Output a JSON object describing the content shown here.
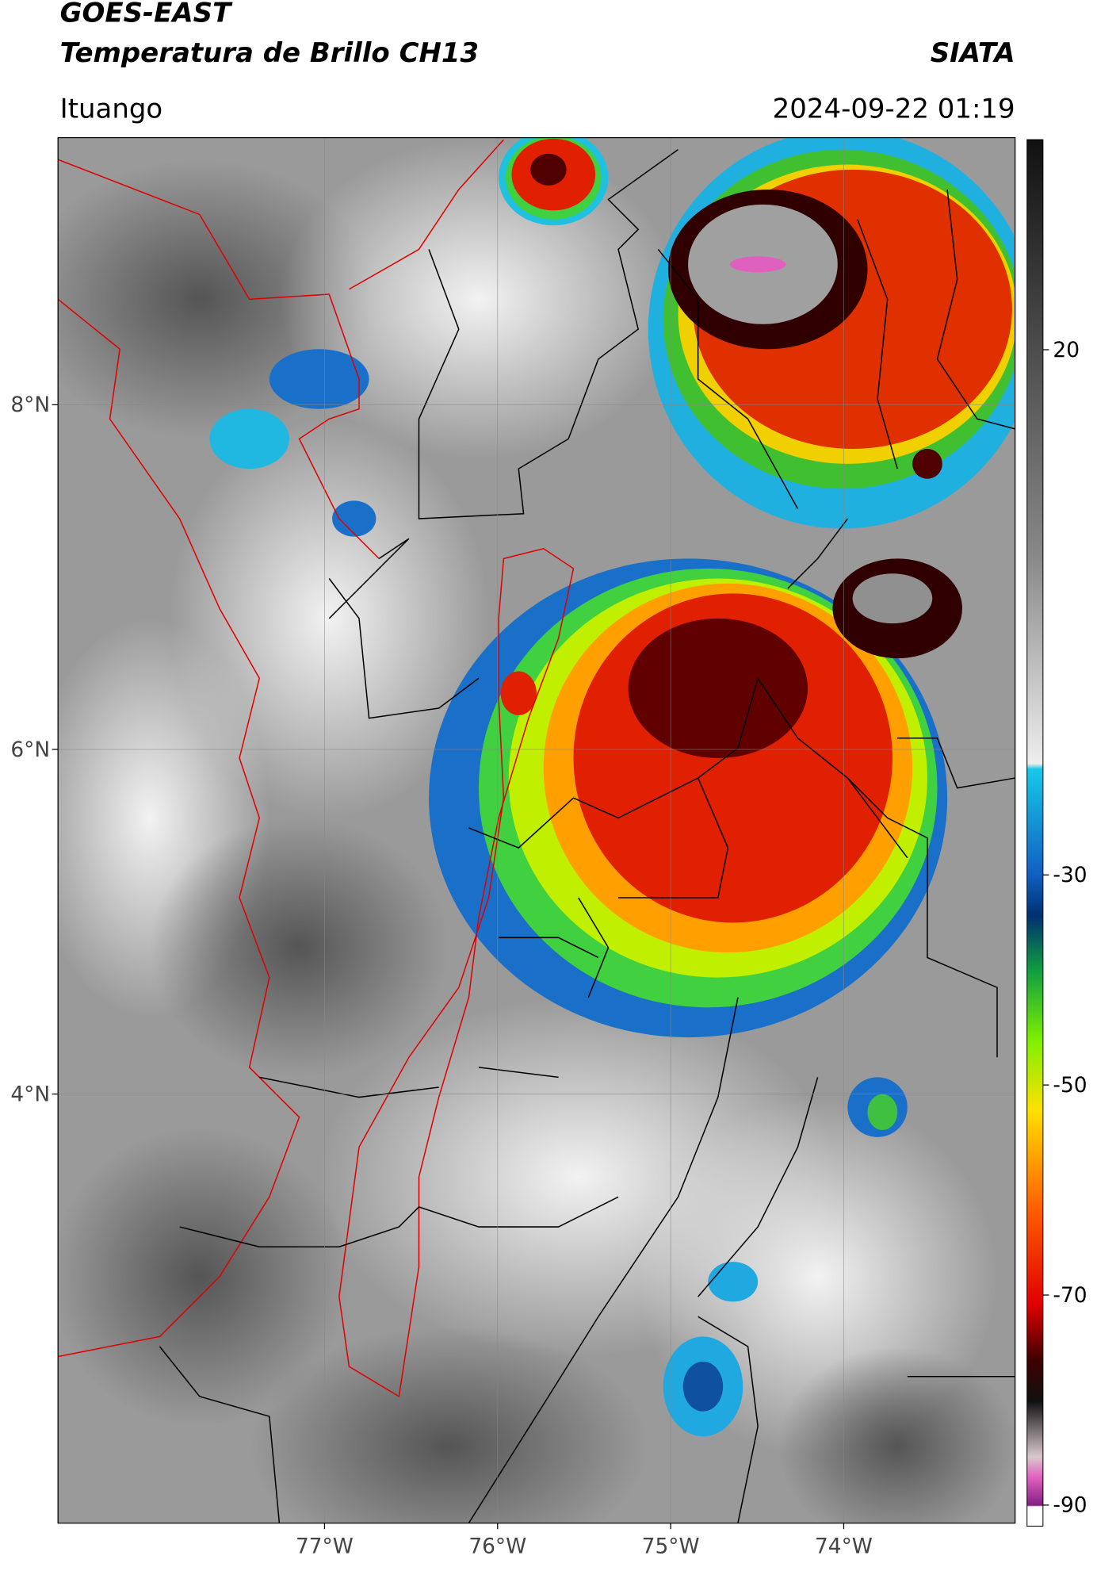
{
  "header": {
    "satellite": "GOES-EAST",
    "product": "Temperatura de Brillo CH13",
    "agency": "SIATA",
    "location": "Ituango",
    "datetime": "2024-09-22 01:19"
  },
  "map": {
    "xlim": [
      -78.54,
      -73.01
    ],
    "ylim": [
      1.51,
      9.55
    ],
    "xticks": [
      {
        "value": -77,
        "label": "77°W"
      },
      {
        "value": -76,
        "label": "76°W"
      },
      {
        "value": -75,
        "label": "75°W"
      },
      {
        "value": -74,
        "label": "74°W"
      }
    ],
    "yticks": [
      {
        "value": 8,
        "label": "8°N"
      },
      {
        "value": 6,
        "label": "6°N"
      },
      {
        "value": 4,
        "label": "4°N"
      }
    ],
    "grid": true
  },
  "colorbar": {
    "lim": [
      -92,
      40
    ],
    "ticks": [
      20,
      -30,
      -50,
      -70,
      -90
    ]
  }
}
